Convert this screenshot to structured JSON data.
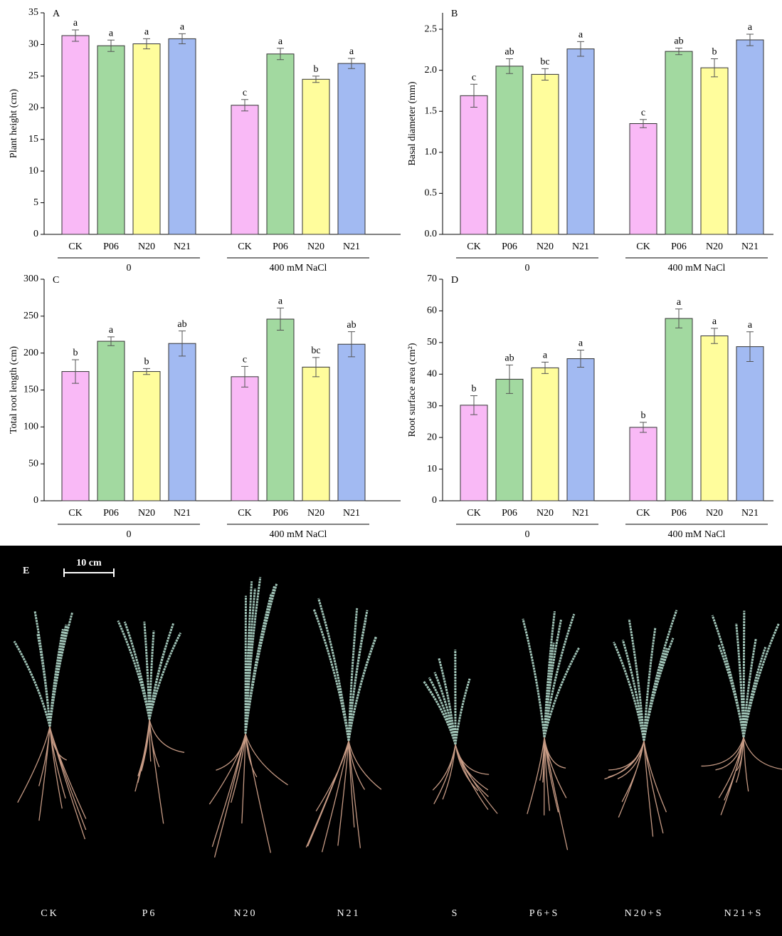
{
  "chart_data": [
    {
      "type": "bar",
      "panel": "A",
      "y_label": "Plant height (cm)",
      "categories": [
        "CK",
        "P06",
        "N20",
        "N21",
        "CK",
        "P06",
        "N20",
        "N21"
      ],
      "groups": [
        "0",
        "400 mM NaCl"
      ],
      "values": [
        31.4,
        29.8,
        30.1,
        30.9,
        20.4,
        28.5,
        24.5,
        27.0
      ],
      "errors": [
        0.9,
        0.9,
        0.8,
        0.8,
        0.9,
        0.9,
        0.5,
        0.8
      ],
      "letters": [
        "a",
        "a",
        "a",
        "a",
        "c",
        "a",
        "b",
        "a"
      ],
      "colors": [
        "#f9b9f6",
        "#a2d9a0",
        "#fffd9c",
        "#a2baf2"
      ],
      "ylim": [
        0,
        35
      ],
      "yticks": [
        0,
        5,
        10,
        15,
        20,
        25,
        30,
        35
      ]
    },
    {
      "type": "bar",
      "panel": "B",
      "y_label": "Basal diameter (mm)",
      "categories": [
        "CK",
        "P06",
        "N20",
        "N21",
        "CK",
        "P06",
        "N20",
        "N21"
      ],
      "groups": [
        "0",
        "400 mM NaCl"
      ],
      "values": [
        1.69,
        2.05,
        1.95,
        2.26,
        1.35,
        2.23,
        2.03,
        2.37
      ],
      "errors": [
        0.14,
        0.09,
        0.07,
        0.09,
        0.05,
        0.04,
        0.11,
        0.07
      ],
      "letters": [
        "c",
        "ab",
        "bc",
        "a",
        "c",
        "ab",
        "b",
        "a"
      ],
      "colors": [
        "#f9b9f6",
        "#a2d9a0",
        "#fffd9c",
        "#a2baf2"
      ],
      "ylim": [
        0,
        2.7
      ],
      "yticks": [
        {
          "value": 0,
          "label": "0.0"
        },
        0.5,
        {
          "value": 1,
          "label": "1.0"
        },
        1.5,
        {
          "value": 2,
          "label": "2.0"
        },
        2.5
      ]
    },
    {
      "type": "bar",
      "panel": "C",
      "y_label": "Total root length (cm)",
      "categories": [
        "CK",
        "P06",
        "N20",
        "N21",
        "CK",
        "P06",
        "N20",
        "N21"
      ],
      "groups": [
        "0",
        "400 mM NaCl"
      ],
      "values": [
        175,
        216,
        175,
        213,
        168,
        246,
        181,
        212
      ],
      "errors": [
        16,
        6,
        4,
        17,
        14,
        15,
        13,
        17
      ],
      "letters": [
        "b",
        "a",
        "b",
        "ab",
        "c",
        "a",
        "bc",
        "ab"
      ],
      "colors": [
        "#f9b9f6",
        "#a2d9a0",
        "#fffd9c",
        "#a2baf2"
      ],
      "ylim": [
        0,
        300
      ],
      "yticks": [
        0,
        50,
        100,
        150,
        200,
        250,
        300
      ]
    },
    {
      "type": "bar",
      "panel": "D",
      "y_label": "Root surface area (cm²)",
      "categories": [
        "CK",
        "P06",
        "N20",
        "N21",
        "CK",
        "P06",
        "N20",
        "N21"
      ],
      "groups": [
        "0",
        "400 mM NaCl"
      ],
      "values": [
        30.2,
        38.4,
        42.0,
        44.9,
        23.2,
        57.6,
        52.1,
        48.7
      ],
      "errors": [
        3.0,
        4.5,
        1.8,
        2.7,
        1.6,
        3.0,
        2.4,
        4.7
      ],
      "letters": [
        "b",
        "ab",
        "a",
        "a",
        "b",
        "a",
        "a",
        "a"
      ],
      "colors": [
        "#f9b9f6",
        "#a2d9a0",
        "#fffd9c",
        "#a2baf2"
      ],
      "ylim": [
        0,
        70
      ],
      "yticks": [
        0,
        10,
        20,
        30,
        40,
        50,
        60,
        70
      ]
    }
  ],
  "photo": {
    "panel": "E",
    "scale_bar": "10 cm",
    "labels": [
      "CK",
      "P6",
      "N20",
      "N21",
      "S",
      "P6+S",
      "N20+S",
      "N21+S"
    ]
  }
}
